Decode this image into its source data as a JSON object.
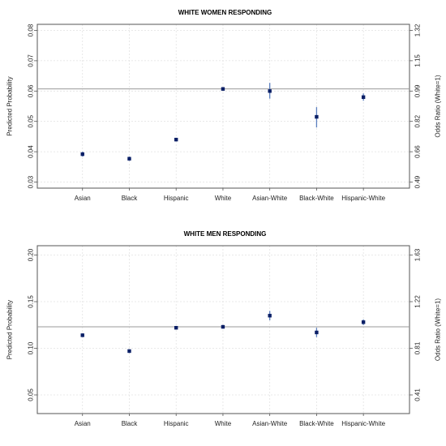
{
  "colors": {
    "point": "#0b1f66",
    "errorbar": "#5b7fbf",
    "refline": "#9a9a9a",
    "grid": "#e2e2e2",
    "frame": "#555555"
  },
  "chart_data": [
    {
      "type": "scatter",
      "title": "WHITE WOMEN RESPONDING",
      "xlabel": "",
      "ylabel": "Predicted Probability",
      "y2label": "Odds Ratio (White=1)",
      "categories": [
        "Asian",
        "Black",
        "Hispanic",
        "White",
        "Asian-White",
        "Black-White",
        "Hispanic-White"
      ],
      "values": [
        0.0392,
        0.0377,
        0.044,
        0.0607,
        0.06,
        0.0515,
        0.058
      ],
      "ci_low": [
        0.0384,
        0.037,
        0.0434,
        0.0603,
        0.0575,
        0.048,
        0.0568
      ],
      "ci_high": [
        0.04,
        0.0384,
        0.0446,
        0.0611,
        0.0627,
        0.0547,
        0.0592
      ],
      "reference_line": 0.0607,
      "ylim": [
        0.028,
        0.082
      ],
      "yticks": [
        0.03,
        0.04,
        0.05,
        0.06,
        0.07,
        0.08
      ],
      "ytick_labels": [
        "0.03",
        "0.04",
        "0.05",
        "0.06",
        "0.07",
        "0.08"
      ],
      "y2ticks": [
        0.49,
        0.66,
        0.82,
        0.99,
        1.15,
        1.32
      ],
      "y2tick_labels": [
        "0.49",
        "0.66",
        "0.82",
        "0.99",
        "1.15",
        "1.32"
      ],
      "grid": true
    },
    {
      "type": "scatter",
      "title": "WHITE MEN RESPONDING",
      "xlabel": "",
      "ylabel": "Predicted Probability",
      "y2label": "Odds Ratio (White=1)",
      "categories": [
        "Asian",
        "Black",
        "Hispanic",
        "White",
        "Asian-White",
        "Black-White",
        "Hispanic-White"
      ],
      "values": [
        0.114,
        0.097,
        0.122,
        0.123,
        0.135,
        0.117,
        0.128
      ],
      "ci_low": [
        0.112,
        0.095,
        0.12,
        0.121,
        0.13,
        0.112,
        0.125
      ],
      "ci_high": [
        0.116,
        0.099,
        0.124,
        0.125,
        0.14,
        0.122,
        0.131
      ],
      "reference_line": 0.123,
      "ylim": [
        0.03,
        0.21
      ],
      "yticks": [
        0.05,
        0.1,
        0.15,
        0.2
      ],
      "ytick_labels": [
        "0.05",
        "0.10",
        "0.15",
        "0.20"
      ],
      "y2ticks": [
        0.41,
        0.81,
        1.22,
        1.63
      ],
      "y2tick_labels": [
        "0.41",
        "0.81",
        "1.22",
        "1.63"
      ],
      "grid": true
    }
  ]
}
